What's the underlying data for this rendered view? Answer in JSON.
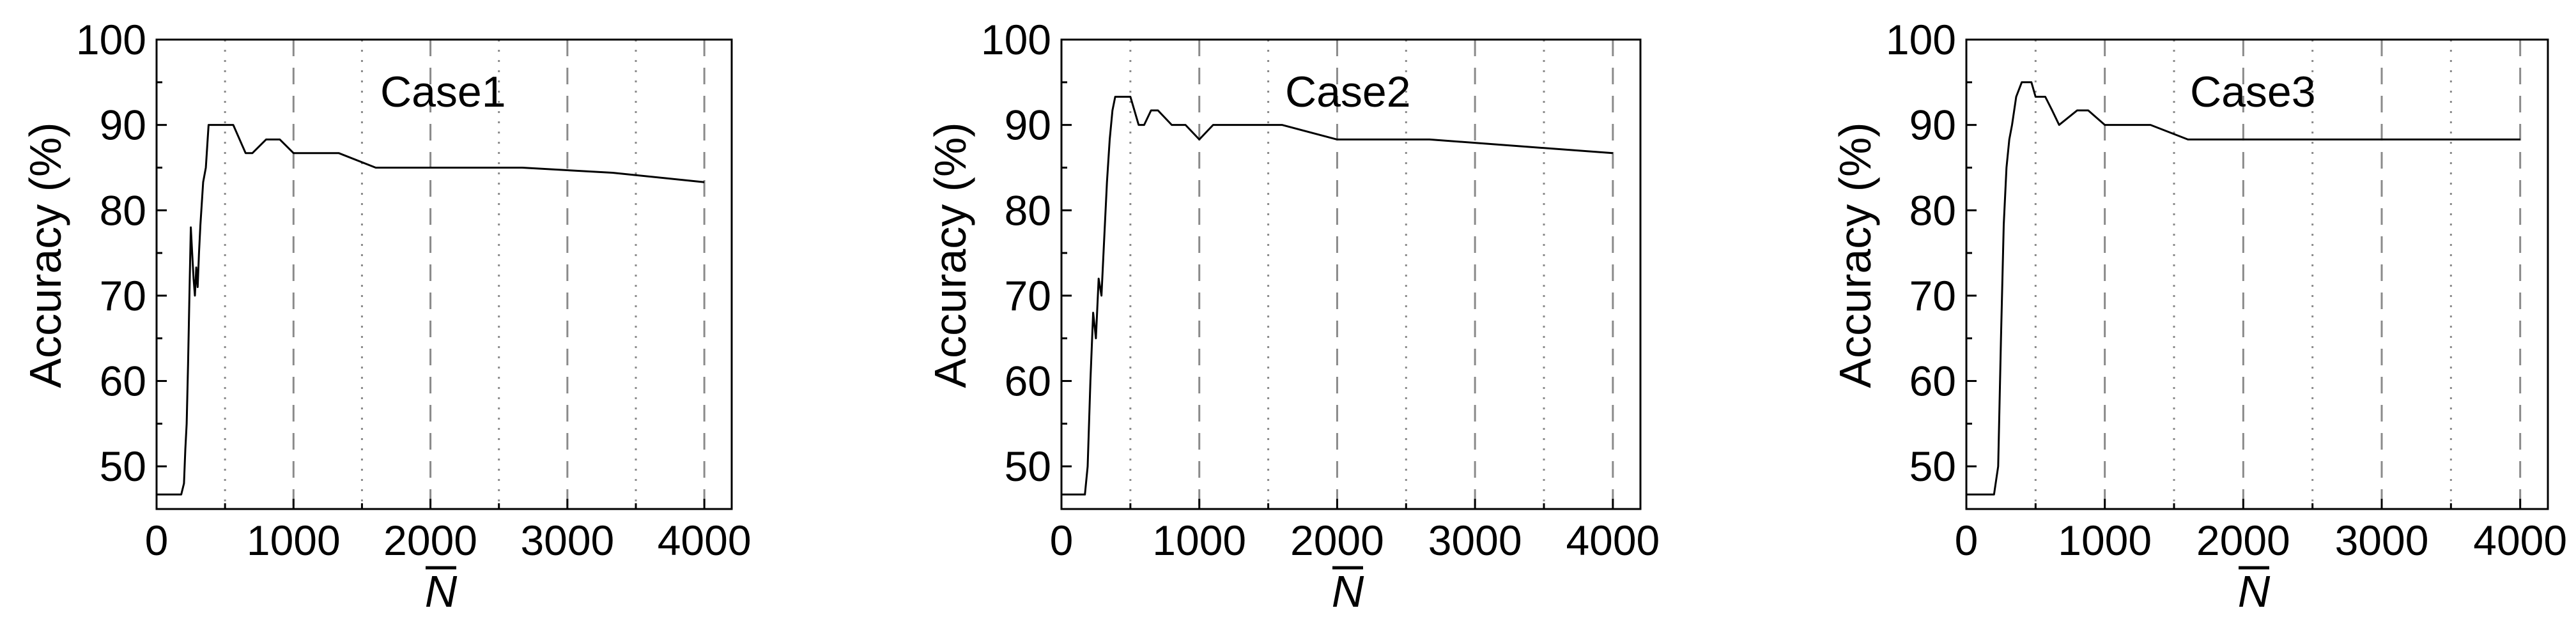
{
  "chart_data": [
    {
      "type": "line",
      "title": "Case1",
      "xlabel": "N",
      "ylabel": "Accuracy (%)",
      "xlim": [
        0,
        4200
      ],
      "ylim": [
        45,
        100
      ],
      "xticks": [
        0,
        1000,
        2000,
        3000,
        4000
      ],
      "yticks": [
        50,
        60,
        70,
        80,
        90,
        100
      ],
      "vlines_dotted": [
        500,
        1500,
        2500,
        3500
      ],
      "vlines_dashed": [
        1000,
        2000,
        3000,
        4000
      ],
      "x": [
        0,
        150,
        180,
        200,
        210,
        220,
        230,
        240,
        250,
        260,
        270,
        280,
        290,
        300,
        310,
        320,
        340,
        360,
        380,
        400,
        450,
        560,
        650,
        700,
        800,
        900,
        1000,
        1330,
        1600,
        2000,
        2670,
        3330,
        4000
      ],
      "y": [
        46.7,
        46.7,
        46.7,
        48.0,
        52.0,
        55.0,
        62.0,
        70.0,
        78.0,
        75.0,
        72.0,
        70.0,
        73.3,
        71.0,
        75.0,
        78.3,
        83.3,
        85.0,
        90.0,
        90.0,
        90.0,
        90.0,
        86.7,
        86.7,
        88.3,
        88.3,
        86.7,
        86.7,
        85.0,
        85.0,
        85.0,
        84.4,
        83.3
      ]
    },
    {
      "type": "line",
      "title": "Case2",
      "xlabel": "N",
      "ylabel": "Accuracy (%)",
      "xlim": [
        0,
        4200
      ],
      "ylim": [
        45,
        100
      ],
      "xticks": [
        0,
        1000,
        2000,
        3000,
        4000
      ],
      "yticks": [
        50,
        60,
        70,
        80,
        90,
        100
      ],
      "vlines_dotted": [
        500,
        1500,
        2500,
        3500
      ],
      "vlines_dashed": [
        1000,
        2000,
        3000,
        4000
      ],
      "x": [
        0,
        170,
        190,
        210,
        230,
        250,
        270,
        290,
        310,
        330,
        350,
        370,
        390,
        420,
        500,
        560,
        600,
        650,
        700,
        800,
        900,
        1000,
        1100,
        1330,
        1600,
        2000,
        2670,
        3330,
        4000
      ],
      "y": [
        46.7,
        46.7,
        50.0,
        60.0,
        68.0,
        65.0,
        72.0,
        70.0,
        76.7,
        83.3,
        88.3,
        91.7,
        93.3,
        93.3,
        93.3,
        90.0,
        90.0,
        91.7,
        91.7,
        90.0,
        90.0,
        88.3,
        90.0,
        90.0,
        90.0,
        88.3,
        88.3,
        87.5,
        86.7
      ]
    },
    {
      "type": "line",
      "title": "Case3",
      "xlabel": "N",
      "ylabel": "Accuracy (%)",
      "xlim": [
        0,
        4200
      ],
      "ylim": [
        45,
        100
      ],
      "xticks": [
        0,
        1000,
        2000,
        3000,
        4000
      ],
      "yticks": [
        50,
        60,
        70,
        80,
        90,
        100
      ],
      "vlines_dotted": [
        500,
        1500,
        2500,
        3500
      ],
      "vlines_dashed": [
        1000,
        2000,
        3000,
        4000
      ],
      "x": [
        0,
        150,
        200,
        230,
        250,
        270,
        290,
        310,
        330,
        360,
        400,
        470,
        500,
        570,
        620,
        670,
        800,
        880,
        1000,
        1330,
        1600,
        2000,
        2670,
        3330,
        4000
      ],
      "y": [
        46.7,
        46.7,
        46.7,
        50.0,
        65.0,
        78.3,
        85.0,
        88.3,
        90.0,
        93.3,
        95.0,
        95.0,
        93.3,
        93.3,
        91.7,
        90.0,
        91.7,
        91.7,
        90.0,
        90.0,
        88.3,
        88.3,
        88.3,
        88.3,
        88.3
      ]
    }
  ]
}
